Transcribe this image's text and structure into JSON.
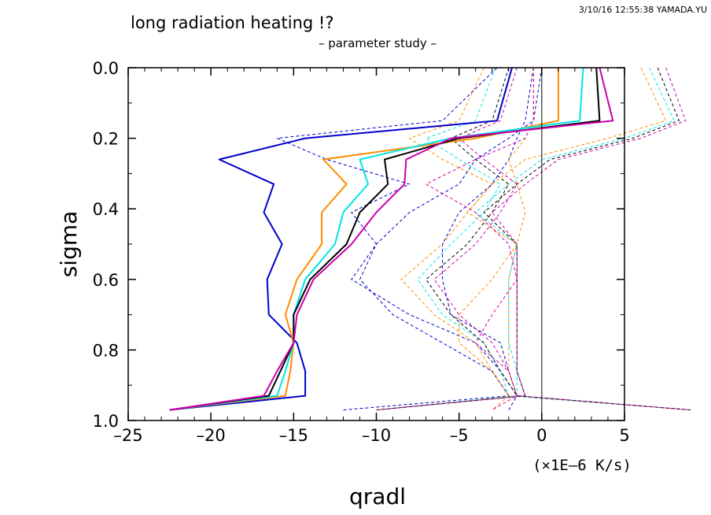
{
  "header": {
    "title": "long radiation heating !?",
    "subtitle": "– parameter study –",
    "stamp": "3/10/16 12:55:38 YAMADA.YU"
  },
  "chart_data": {
    "type": "line",
    "xlabel": "qradl",
    "ylabel": "sigma",
    "x_unit_label": "(×1E–6 K/s)",
    "xlim": [
      -25,
      5
    ],
    "ylim": [
      1.0,
      0.0
    ],
    "y_inverted": true,
    "x_ticks": [
      -25,
      -20,
      -15,
      -10,
      -5,
      0,
      5
    ],
    "x_tick_labels": [
      "–25",
      "–20",
      "–15",
      "–10",
      "–5",
      "0",
      "5"
    ],
    "y_ticks": [
      0.0,
      0.2,
      0.4,
      0.6,
      0.8,
      1.0
    ],
    "y_tick_labels": [
      "0.0",
      "0.2",
      "0.4",
      "0.6",
      "0.8",
      "1.0"
    ],
    "grid": false,
    "legend": "none",
    "zero_line_x": 0,
    "sigma_levels": [
      0.0,
      0.15,
      0.2,
      0.26,
      0.33,
      0.41,
      0.5,
      0.6,
      0.7,
      0.78,
      0.86,
      0.93,
      0.97
    ],
    "series": [
      {
        "color": "#0000cc",
        "style": "solid",
        "x": [
          -1.8,
          -2.7,
          -14.3,
          -19.5,
          -16.2,
          -16.8,
          -15.7,
          -16.6,
          -16.5,
          -14.8,
          -14.3,
          -14.3,
          -22.5
        ]
      },
      {
        "color": "#ff8c00",
        "style": "solid",
        "x": [
          1.0,
          1.0,
          -4.0,
          -13.2,
          -11.8,
          -13.3,
          -13.3,
          -14.8,
          -15.5,
          -15.0,
          -15.2,
          -15.5,
          -22.5
        ]
      },
      {
        "color": "#00e5e5",
        "style": "solid",
        "x": [
          2.5,
          2.3,
          -5.5,
          -11.0,
          -10.5,
          -12.0,
          -12.5,
          -14.3,
          -15.0,
          -15.0,
          -15.5,
          -16.0,
          -22.5
        ]
      },
      {
        "color": "#000000",
        "style": "solid",
        "x": [
          3.3,
          3.5,
          -5.0,
          -9.5,
          -9.3,
          -11.0,
          -11.8,
          -14.0,
          -15.0,
          -15.0,
          -15.8,
          -16.5,
          -22.5
        ]
      },
      {
        "color": "#cc00aa",
        "style": "solid",
        "x": [
          3.5,
          4.3,
          -5.5,
          -8.2,
          -8.3,
          -10.0,
          -11.5,
          -13.8,
          -14.8,
          -15.0,
          -16.0,
          -16.8,
          -22.5
        ]
      },
      {
        "color": "#0000cc",
        "style": "dashed",
        "x": [
          -2.7,
          -6.0,
          -16.0,
          -13.0,
          -8.0,
          -11.5,
          -10.0,
          -11.5,
          -8.0,
          -4.0,
          -2.5,
          -1.5,
          9.0
        ]
      },
      {
        "color": "#ff8c00",
        "style": "dashed",
        "x": [
          -3.5,
          -5.0,
          -8.0,
          -6.0,
          -3.0,
          -4.5,
          -6.0,
          -8.5,
          -6.5,
          -4.0,
          -3.0,
          -2.0,
          9.0
        ]
      },
      {
        "color": "#00e5e5",
        "style": "dashed",
        "x": [
          -2.8,
          -4.0,
          -7.0,
          -5.0,
          -2.5,
          -3.5,
          -5.5,
          -7.5,
          -6.0,
          -3.5,
          -2.5,
          -2.0,
          9.0
        ]
      },
      {
        "color": "#000000",
        "style": "dashed",
        "x": [
          -2.0,
          -3.0,
          -5.5,
          -4.0,
          -2.0,
          -3.0,
          -4.5,
          -7.0,
          -5.5,
          -3.5,
          -2.5,
          -1.5,
          9.0
        ]
      },
      {
        "color": "#cc00aa",
        "style": "dashed",
        "x": [
          -1.5,
          -2.5,
          -5.0,
          -3.5,
          -1.5,
          -2.5,
          -4.0,
          -6.5,
          -5.0,
          -3.0,
          -2.0,
          -1.5,
          9.0
        ]
      },
      {
        "color": "#0000cc",
        "style": "dashed",
        "x": [
          0.0,
          -0.5,
          -2.0,
          -4.0,
          -5.0,
          -8.0,
          -10.0,
          -11.0,
          -9.0,
          -6.0,
          -3.0,
          -2.0,
          -12.0
        ]
      },
      {
        "color": "#ff8c00",
        "style": "dashed",
        "x": [
          6.0,
          7.5,
          4.0,
          -1.0,
          -3.0,
          -4.5,
          -1.5,
          -2.0,
          -2.0,
          -2.0,
          -2.0,
          -1.5,
          -10.0
        ]
      },
      {
        "color": "#00e5e5",
        "style": "dashed",
        "x": [
          6.5,
          8.0,
          5.0,
          0.0,
          -2.0,
          -4.0,
          -1.5,
          -2.0,
          -2.0,
          -2.0,
          -1.5,
          -1.5,
          -10.0
        ]
      },
      {
        "color": "#000000",
        "style": "dashed",
        "x": [
          7.0,
          8.3,
          5.5,
          0.5,
          -1.5,
          -3.5,
          -1.5,
          -1.5,
          -1.5,
          -1.5,
          -1.5,
          -1.0,
          -10.0
        ]
      },
      {
        "color": "#cc00aa",
        "style": "dashed",
        "x": [
          7.5,
          8.7,
          6.0,
          1.0,
          -1.0,
          -3.0,
          -1.5,
          -1.5,
          -1.5,
          -1.5,
          -1.5,
          -1.0,
          -10.0
        ]
      },
      {
        "color": "#0000cc",
        "style": "dashed",
        "x": [
          -0.5,
          -1.0,
          -1.5,
          -2.0,
          -3.0,
          -5.0,
          -6.0,
          -6.0,
          -5.5,
          -2.5,
          -2.0,
          -1.5,
          -2.0
        ]
      },
      {
        "color": "#ff8c00",
        "style": "dashed",
        "x": [
          -0.5,
          -0.5,
          -1.0,
          -2.0,
          -1.5,
          -1.0,
          -1.5,
          -3.0,
          -5.0,
          -5.0,
          -3.0,
          -2.0,
          -3.0
        ]
      },
      {
        "color": "#cc00aa",
        "style": "dashed",
        "x": [
          -0.5,
          -0.5,
          -1.0,
          -4.0,
          -7.0,
          -4.0,
          -2.0,
          -1.5,
          -3.0,
          -4.0,
          -2.0,
          -1.5,
          -3.0
        ]
      }
    ]
  }
}
